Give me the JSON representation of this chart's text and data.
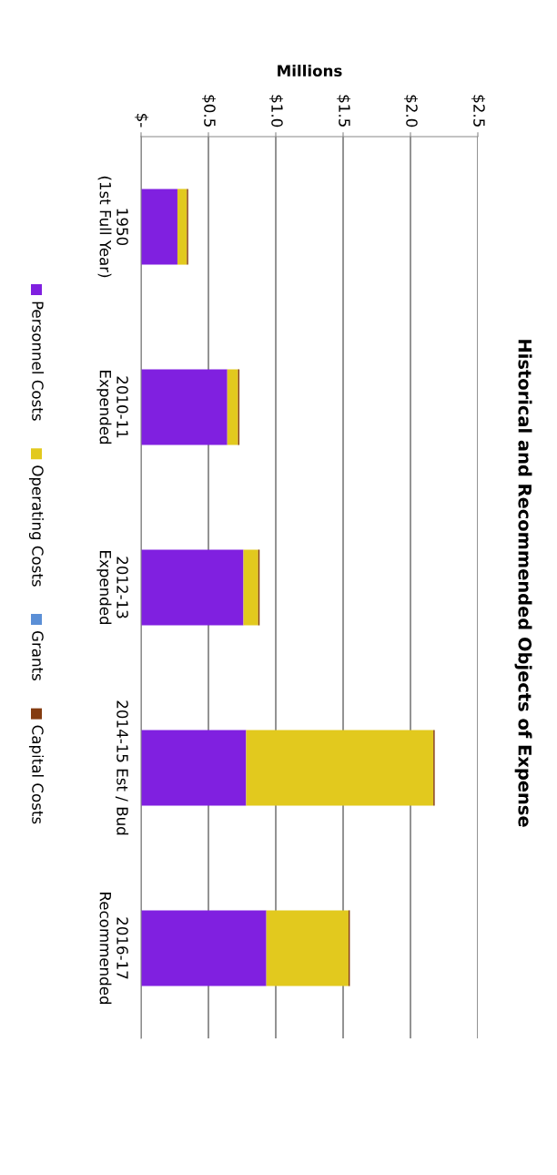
{
  "chart_data": {
    "type": "bar",
    "orientation": "horizontal",
    "stacked": true,
    "title": "Historical and Recommended Objects of Expense",
    "xlabel": "Millions",
    "categories": [
      "1950\n(1st Full Year)",
      "2010-11\nExpended",
      "2012-13\nExpended",
      "2014-15 Est / Bud",
      "2016-17\nRecommended"
    ],
    "series": [
      {
        "name": "Personnel Costs",
        "color": "#8020e0",
        "values": [
          0.27,
          0.64,
          0.76,
          0.78,
          0.93
        ]
      },
      {
        "name": "Operating Costs",
        "color": "#e2c91e",
        "values": [
          0.07,
          0.08,
          0.11,
          1.39,
          0.61
        ]
      },
      {
        "name": "Grants",
        "color": "#5b8fd6",
        "values": [
          0,
          0,
          0,
          0,
          0
        ]
      },
      {
        "name": "Capital Costs",
        "color": "#843c10",
        "values": [
          0.01,
          0.01,
          0.01,
          0.01,
          0.01
        ]
      }
    ],
    "xlim": [
      0,
      2.5
    ],
    "xticks": [
      {
        "value": 0,
        "label": "$-"
      },
      {
        "value": 0.5,
        "label": "$0.5"
      },
      {
        "value": 1.0,
        "label": "$1.0"
      },
      {
        "value": 1.5,
        "label": "$1.5"
      },
      {
        "value": 2.0,
        "label": "$2.0"
      },
      {
        "value": 2.5,
        "label": "$2.5"
      }
    ],
    "grid": "x",
    "legend": "left"
  }
}
